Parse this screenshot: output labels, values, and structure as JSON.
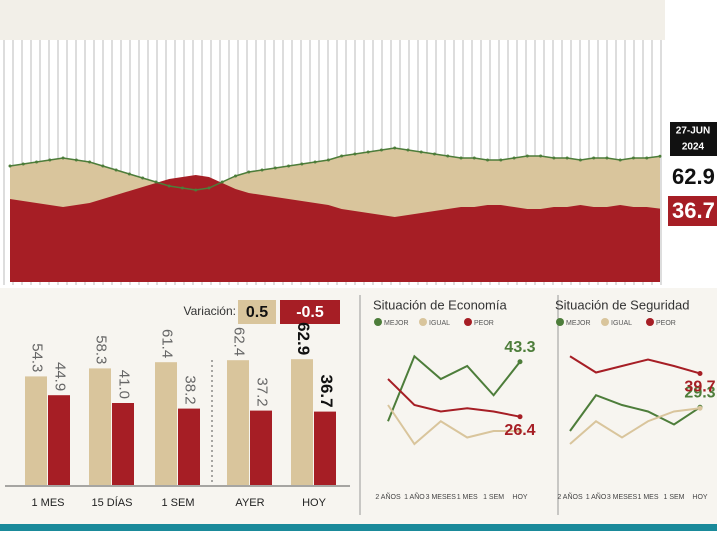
{
  "chart_data": [
    {
      "type": "area",
      "date_label": [
        "27-JUN",
        "2024"
      ],
      "ylim": [
        0,
        100
      ],
      "series": [
        {
          "color": "#d9c59c",
          "line_color": "#4d7d3a",
          "values": [
            58,
            59,
            60,
            61,
            62,
            61,
            60,
            58,
            56,
            54,
            52,
            50,
            48,
            47,
            46,
            47,
            50,
            53,
            55,
            56,
            57,
            58,
            59,
            60,
            61,
            63,
            64,
            65,
            66,
            67,
            66,
            65,
            64,
            63,
            62,
            62,
            61,
            61,
            62,
            63,
            63,
            62,
            62,
            61,
            62,
            62,
            61,
            62,
            62,
            62.9
          ]
        },
        {
          "color": "#a61e25",
          "values": [
            41.5,
            40.5,
            39.5,
            38.5,
            37.5,
            38.5,
            39.5,
            41.5,
            43.5,
            45.5,
            47.5,
            49.5,
            51.5,
            52.5,
            53.5,
            52.5,
            49.5,
            46.5,
            44.5,
            43.5,
            42.5,
            41.5,
            40.5,
            39.5,
            38.5,
            36.5,
            35.5,
            34.5,
            33.5,
            32.5,
            33.5,
            34.5,
            35.5,
            36.5,
            37.5,
            37.5,
            38.5,
            38.5,
            37.5,
            36.5,
            36.5,
            37.5,
            37.5,
            38.5,
            37.5,
            37.5,
            38.5,
            37.5,
            37.5,
            36.7
          ]
        }
      ]
    },
    {
      "type": "bar",
      "variation_label": "Variación:",
      "variation": [
        0.5,
        -0.5
      ],
      "categories": [
        "1 MES",
        "15 DÍAS",
        "1 SEM",
        "AYER",
        "HOY"
      ],
      "ylim": [
        0,
        70
      ],
      "series": [
        {
          "color": "#d9c59c",
          "values": [
            54.3,
            58.3,
            61.4,
            62.4,
            62.9
          ]
        },
        {
          "color": "#a61e25",
          "values": [
            44.9,
            41.0,
            38.2,
            37.2,
            36.7
          ],
          "value_labels": [
            "44.9",
            "41.0",
            "38.2",
            "37.2",
            "36.7"
          ]
        }
      ]
    },
    {
      "type": "line",
      "title": "Situación de Economía",
      "categories": [
        "2 AÑOS",
        "1 AÑO",
        "3 MESES",
        "1 MES",
        "1 SEM",
        "HOY"
      ],
      "ylim": [
        10,
        50
      ],
      "series": [
        {
          "name": "MEJOR",
          "color": "#4d7d3a",
          "labeled": true,
          "values": [
            25,
            45,
            38,
            42,
            33,
            43.3
          ]
        },
        {
          "name": "IGUAL",
          "color": "#d9c59c",
          "labeled": false,
          "values": [
            30,
            18,
            25,
            20,
            22,
            22
          ]
        },
        {
          "name": "PEOR",
          "color": "#a61e25",
          "labeled": true,
          "values": [
            38,
            30,
            28,
            29,
            28,
            26.4
          ]
        }
      ]
    },
    {
      "type": "line",
      "title": "Situación de Seguridad",
      "categories": [
        "2 AÑOS",
        "1 AÑO",
        "3 MESES",
        "1 MES",
        "1 SEM",
        "HOY"
      ],
      "ylim": [
        10,
        50
      ],
      "series": [
        {
          "name": "MEJOR",
          "color": "#4d7d3a",
          "labeled": true,
          "values": [
            22,
            33,
            30,
            28,
            24,
            29.3
          ]
        },
        {
          "name": "IGUAL",
          "color": "#d9c59c",
          "labeled": false,
          "values": [
            18,
            25,
            20,
            25,
            28,
            29
          ]
        },
        {
          "name": "PEOR",
          "color": "#a61e25",
          "labeled": true,
          "values": [
            45,
            40,
            42,
            44,
            42,
            39.7
          ]
        }
      ]
    }
  ]
}
